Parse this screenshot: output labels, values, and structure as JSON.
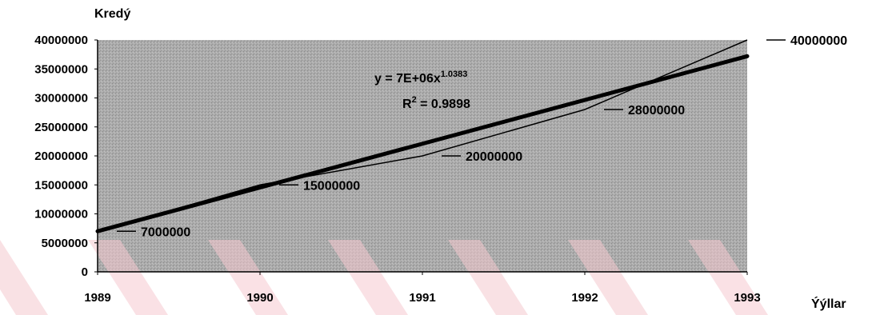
{
  "chart_data": {
    "type": "line",
    "ylabel": "Kredý",
    "xlabel": "Ýýllar",
    "x": [
      1989,
      1990,
      1991,
      1992,
      1993
    ],
    "xlim": [
      1989,
      1993
    ],
    "ylim": [
      0,
      40000000
    ],
    "yticks": [
      0,
      5000000,
      10000000,
      15000000,
      20000000,
      25000000,
      30000000,
      35000000,
      40000000
    ],
    "series": [
      {
        "values": [
          7000000,
          15000000,
          20000000,
          28000000,
          40000000
        ],
        "data_labels": [
          "7000000",
          "15000000",
          "20000000",
          "28000000",
          "40000000"
        ]
      }
    ],
    "trendline": {
      "type": "power",
      "values": [
        7000000,
        14500000,
        21800000,
        29300000,
        37200000
      ],
      "equation": "y = 7E+06x",
      "exponent": "1.0383",
      "r2_label": "R",
      "r2_sup": "2",
      "r2_value": " = 0.9898"
    },
    "grid": false,
    "legend": "none",
    "colors": {
      "plot_background": "#a9a9a9",
      "line": "#000000",
      "stripe": "#f2c6cc"
    }
  }
}
